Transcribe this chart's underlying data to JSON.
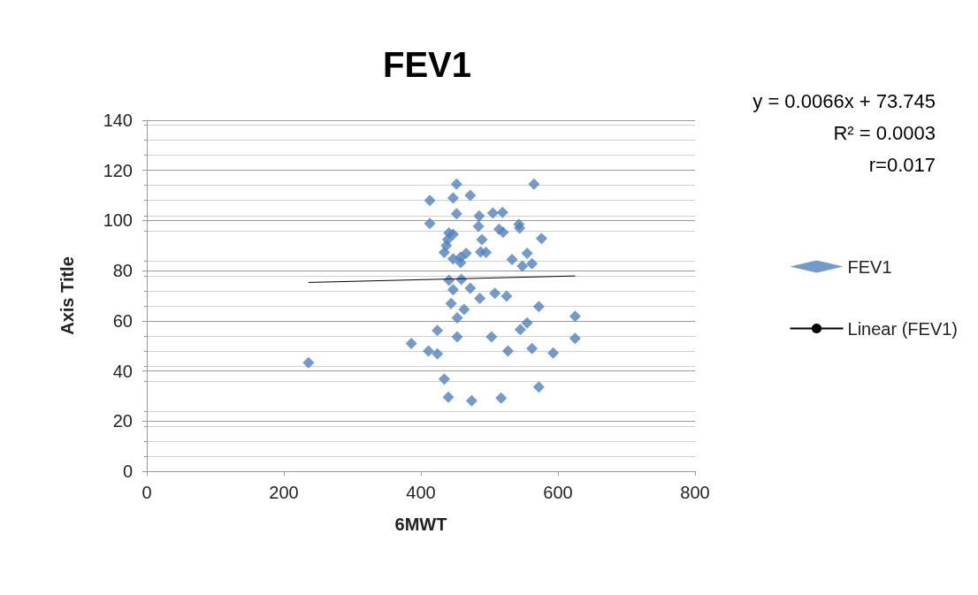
{
  "chart_data": {
    "type": "scatter",
    "title": "FEV1",
    "xlabel": "6MWT",
    "ylabel": "Axis Title",
    "xlim": [
      0,
      800
    ],
    "xticks": [
      0,
      200,
      400,
      600,
      800
    ],
    "ylim": [
      0,
      140
    ],
    "yticks": [
      0,
      20,
      40,
      60,
      80,
      100,
      120,
      140
    ],
    "grid": "y",
    "legend": "right",
    "marker": "diamond",
    "annotations": [
      "y = 0.0066x + 73.745",
      "R² = 0.0003",
      "r=0.017"
    ],
    "series": [
      {
        "name": "FEV1",
        "color": "#4f81bd",
        "x": [
          236,
          386,
          411,
          424,
          424,
          434,
          440,
          474,
          517,
          572,
          453,
          503,
          527,
          562,
          593,
          625,
          545,
          555,
          453,
          452,
          565,
          413,
          447,
          472,
          452,
          485,
          505,
          519,
          484,
          514,
          520,
          543,
          544,
          413,
          441,
          447,
          439,
          489,
          576,
          437,
          434,
          466,
          458,
          447,
          458,
          487,
          495,
          555,
          533,
          548,
          562,
          441,
          459,
          447,
          472,
          508,
          525,
          486,
          444,
          463,
          572,
          625
        ],
        "values": [
          43.3,
          51,
          48,
          46.8,
          56.2,
          36.8,
          29.5,
          28.1,
          29.2,
          33.6,
          53.6,
          53.6,
          48,
          48.9,
          47.2,
          53,
          56.5,
          59.2,
          61.2,
          114.5,
          114.5,
          108,
          109,
          110,
          102.7,
          101.8,
          103,
          103.2,
          97.7,
          96.5,
          95.3,
          98.5,
          97,
          98.8,
          95,
          94.5,
          92.4,
          92.4,
          92.8,
          90,
          87.3,
          86.9,
          85.3,
          84.7,
          83.2,
          87.5,
          87.3,
          86.9,
          84.5,
          81.8,
          82.8,
          76.2,
          76.5,
          72.4,
          73,
          71,
          69.8,
          68.9,
          66.9,
          64.5,
          65.7,
          61.8
        ]
      },
      {
        "name": "Linear (FEV1)",
        "type": "line",
        "color": "#000000",
        "marker": "none",
        "x": [
          236,
          625
        ],
        "values": [
          75.3,
          77.9
        ]
      }
    ]
  }
}
